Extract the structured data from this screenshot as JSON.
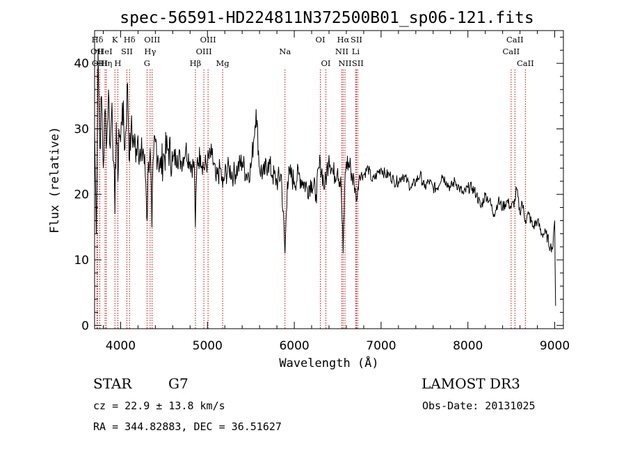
{
  "chart_data": {
    "type": "line",
    "title": "spec-56591-HD224811N372500B01_sp06-121.fits",
    "xlabel": "Wavelength (Å)",
    "ylabel": "Flux (relative)",
    "xlim": [
      3700,
      9100
    ],
    "ylim": [
      -0.5,
      45
    ],
    "xticks": [
      4000,
      5000,
      6000,
      7000,
      8000,
      9000
    ],
    "yticks": [
      0,
      10,
      20,
      30,
      40
    ],
    "xtick_labels": [
      "4000",
      "5000",
      "6000",
      "7000",
      "8000",
      "9000"
    ],
    "ytick_labels": [
      "0",
      "10",
      "20",
      "30",
      "40"
    ],
    "series": [
      {
        "name": "flux",
        "color": "#000000",
        "x": [
          3700,
          3720,
          3740,
          3760,
          3780,
          3800,
          3820,
          3840,
          3860,
          3880,
          3900,
          3920,
          3934,
          3950,
          3968,
          3980,
          4000,
          4020,
          4050,
          4080,
          4102,
          4120,
          4150,
          4180,
          4200,
          4230,
          4260,
          4290,
          4305,
          4320,
          4340,
          4360,
          4380,
          4400,
          4430,
          4460,
          4500,
          4550,
          4600,
          4650,
          4700,
          4750,
          4800,
          4850,
          4861,
          4880,
          4920,
          4960,
          5000,
          5050,
          5100,
          5150,
          5175,
          5200,
          5250,
          5300,
          5350,
          5400,
          5450,
          5500,
          5530,
          5560,
          5600,
          5650,
          5700,
          5750,
          5800,
          5850,
          5893,
          5920,
          5950,
          6000,
          6050,
          6100,
          6150,
          6200,
          6250,
          6300,
          6350,
          6400,
          6450,
          6500,
          6540,
          6563,
          6580,
          6600,
          6650,
          6700,
          6720,
          6750,
          6800,
          6850,
          6900,
          6950,
          7000,
          7050,
          7100,
          7150,
          7200,
          7250,
          7300,
          7350,
          7400,
          7450,
          7500,
          7550,
          7600,
          7650,
          7700,
          7750,
          7800,
          7850,
          7900,
          7950,
          8000,
          8050,
          8100,
          8150,
          8200,
          8250,
          8300,
          8350,
          8400,
          8450,
          8500,
          8542,
          8560,
          8600,
          8620,
          8662,
          8700,
          8750,
          8800,
          8850,
          8900,
          8950,
          8980,
          9000,
          9010
        ],
        "y": [
          30,
          14,
          42,
          27,
          35,
          24,
          33,
          28,
          36,
          27,
          34,
          25,
          17,
          31,
          22,
          30,
          28,
          34,
          27,
          37,
          25,
          30,
          28,
          27,
          29,
          25,
          27,
          22,
          16,
          25,
          27,
          15,
          26,
          28,
          26,
          24,
          26,
          27,
          25,
          26,
          25,
          27,
          25,
          24,
          15,
          25,
          26,
          24,
          25,
          26,
          22,
          24,
          21,
          23,
          24,
          23,
          24,
          25,
          23,
          24,
          28,
          33,
          24,
          23,
          25,
          23,
          22,
          23,
          11,
          22,
          23,
          22,
          23,
          22,
          21,
          22,
          20,
          25,
          21,
          26,
          23,
          24,
          21,
          11,
          21,
          25,
          24,
          21,
          19,
          23,
          23,
          24,
          22,
          23,
          24,
          23,
          23,
          22,
          22,
          23,
          22,
          21,
          22,
          23,
          21,
          22,
          21,
          21,
          23,
          22,
          21,
          22,
          21,
          20,
          21,
          21,
          20,
          18,
          20,
          19,
          17,
          19,
          18,
          19,
          18,
          19,
          21,
          17,
          19,
          16,
          17,
          15,
          16,
          14,
          14,
          12,
          12,
          16,
          3
        ]
      }
    ],
    "spectral_lines": [
      {
        "label": "Hδ",
        "wavelength": 3733,
        "row": 1
      },
      {
        "label": "OII",
        "wavelength": 3727,
        "row": 2
      },
      {
        "label": "OIII",
        "wavelength": 3760,
        "row": 3
      },
      {
        "label": "HeI",
        "wavelength": 3820,
        "row": 2
      },
      {
        "label": "K",
        "wavelength": 3934,
        "row": 1
      },
      {
        "label": "Hη",
        "wavelength": 3835,
        "row": 3
      },
      {
        "label": "SII",
        "wavelength": 4072,
        "row": 2
      },
      {
        "label": "H",
        "wavelength": 3968,
        "row": 3
      },
      {
        "label": "Hδ",
        "wavelength": 4102,
        "row": 1
      },
      {
        "label": "OIII",
        "wavelength": 4363,
        "row": 1
      },
      {
        "label": "Hγ",
        "wavelength": 4340,
        "row": 2
      },
      {
        "label": "G",
        "wavelength": 4304,
        "row": 3
      },
      {
        "label": "Hβ",
        "wavelength": 4861,
        "row": 3
      },
      {
        "label": "OIII",
        "wavelength": 5007,
        "row": 1
      },
      {
        "label": "OIII",
        "wavelength": 4959,
        "row": 2
      },
      {
        "label": "Mg",
        "wavelength": 5175,
        "row": 3
      },
      {
        "label": "Na",
        "wavelength": 5893,
        "row": 2
      },
      {
        "label": "OI",
        "wavelength": 6300,
        "row": 1
      },
      {
        "label": "OI",
        "wavelength": 6364,
        "row": 3
      },
      {
        "label": "Hα",
        "wavelength": 6563,
        "row": 1
      },
      {
        "label": "SII",
        "wavelength": 6716,
        "row": 1
      },
      {
        "label": "NII",
        "wavelength": 6548,
        "row": 2
      },
      {
        "label": "Li",
        "wavelength": 6708,
        "row": 2
      },
      {
        "label": "NII",
        "wavelength": 6584,
        "row": 3
      },
      {
        "label": "SII",
        "wavelength": 6731,
        "row": 3
      },
      {
        "label": "CaII",
        "wavelength": 8542,
        "row": 1
      },
      {
        "label": "CaII",
        "wavelength": 8498,
        "row": 2
      },
      {
        "label": "CaII",
        "wavelength": 8662,
        "row": 3
      }
    ]
  },
  "info": {
    "object_class": "STAR",
    "subclass": "G7",
    "survey": "LAMOST DR3",
    "redshift_line": "cz = 22.9 ± 13.8 km/s",
    "obs_date": "Obs-Date: 20131025",
    "coords": "RA = 344.82883, DEC =  36.51627"
  },
  "colors": {
    "line_marker": "#c00000",
    "spectrum": "#000000",
    "axis": "#000000"
  }
}
